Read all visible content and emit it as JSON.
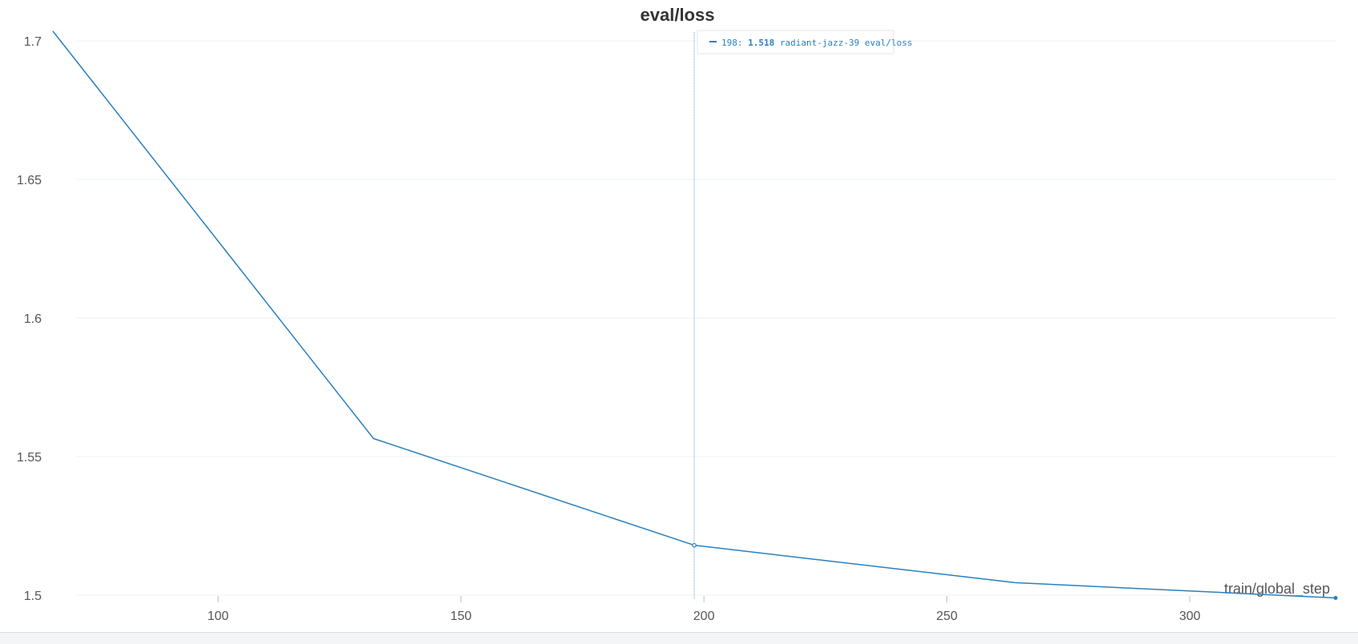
{
  "chart_data": {
    "type": "line",
    "title": "eval/loss",
    "xlabel": "train/global_step",
    "ylabel": "",
    "xlim": [
      66,
      330
    ],
    "ylim": [
      1.5,
      1.7
    ],
    "x_ticks": [
      100,
      150,
      200,
      250,
      300
    ],
    "y_ticks": [
      1.5,
      1.55,
      1.6,
      1.65,
      1.7
    ],
    "grid": true,
    "series": [
      {
        "name": "radiant-jazz-39 eval/loss",
        "color": "#2a7fbf",
        "x": [
          66,
          132,
          198,
          264,
          330
        ],
        "y": [
          1.7035,
          1.5565,
          1.518,
          1.5045,
          1.499
        ]
      }
    ],
    "hover": {
      "step": 198,
      "step_text": "198:",
      "value": 1.518,
      "value_text": "1.518",
      "series_label": "radiant-jazz-39 eval/loss"
    }
  }
}
